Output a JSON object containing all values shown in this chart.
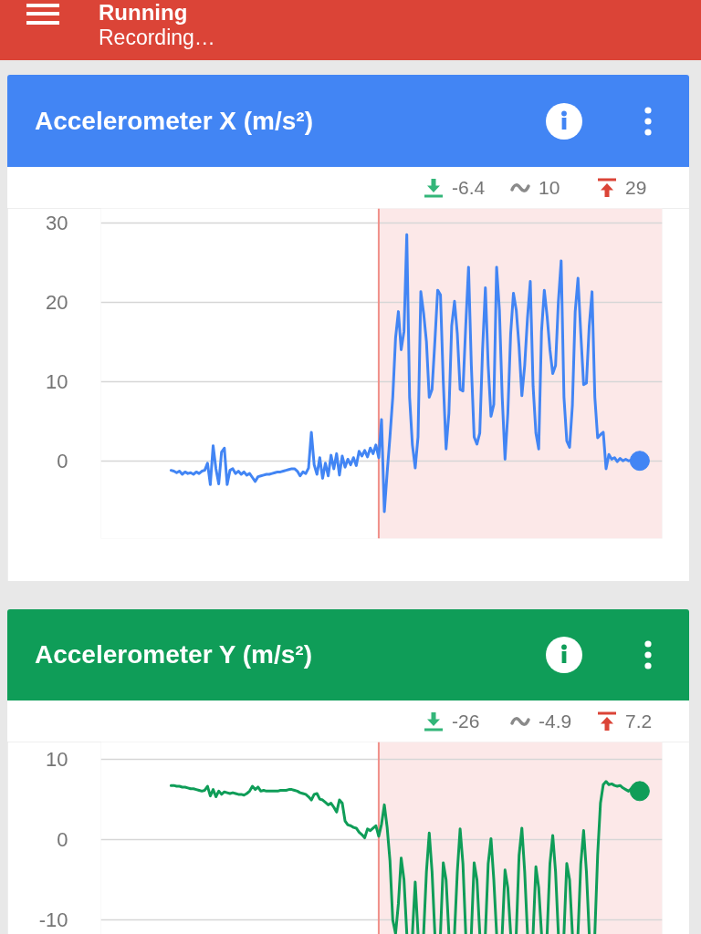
{
  "chart_data": [
    {
      "type": "other",
      "title": "Running",
      "subtitle": "Recording…"
    },
    {
      "type": "line",
      "title": "Accelerometer X (m/s²)",
      "annotations": [
        "-6.4",
        "10",
        "29"
      ],
      "categories": [
        null,
        null,
        null,
        null,
        null,
        null,
        null,
        null,
        null,
        null,
        null,
        null,
        null,
        null,
        null,
        null,
        null,
        null,
        null,
        null,
        null,
        null,
        null,
        null,
        null,
        null,
        null,
        null,
        null,
        null,
        null,
        null,
        null,
        null,
        null,
        null,
        null,
        null,
        null,
        null,
        null,
        null,
        null,
        null,
        null,
        null,
        null,
        null,
        null,
        null,
        null,
        null,
        null,
        null,
        null,
        null,
        null,
        null,
        null,
        null,
        null,
        null,
        null,
        null,
        null,
        null,
        null,
        null,
        null,
        null,
        null,
        null,
        null,
        null,
        null,
        null,
        null,
        null,
        null,
        null,
        null,
        null,
        null,
        null,
        null,
        null,
        null,
        null,
        null,
        null,
        null,
        null,
        null,
        null,
        null,
        null,
        null,
        null,
        null,
        null,
        null,
        null,
        null,
        null,
        null,
        null,
        null,
        null,
        null,
        null,
        null,
        null,
        null,
        null,
        null,
        null,
        null,
        null,
        null,
        null,
        null,
        null,
        null,
        null,
        null,
        null,
        null,
        null,
        null,
        null,
        null,
        null,
        null,
        null,
        null,
        null,
        null,
        null,
        null,
        null,
        null,
        null,
        null,
        null,
        null,
        null,
        null,
        null,
        null,
        null,
        null,
        null,
        null,
        null,
        null,
        null,
        null,
        null,
        null,
        null,
        null,
        null,
        null,
        null,
        null,
        null,
        null,
        null,
        null,
        null,
        null,
        null,
        null,
        null,
        null,
        null,
        null,
        null,
        null,
        null,
        null,
        null,
        null,
        null,
        null,
        null,
        null,
        null,
        null,
        null,
        null,
        null,
        null,
        null,
        null,
        null,
        null,
        null,
        null,
        null,
        null
      ],
      "series": [
        {
          "type": "line",
          "color": "#4285f4",
          "values": [
            null,
            null,
            null,
            null,
            null,
            null,
            null,
            null,
            null,
            null,
            null,
            null,
            null,
            null,
            null,
            null,
            null,
            null,
            null,
            null,
            null,
            null,
            null,
            null,
            null,
            -1.2,
            -1.3,
            -1.5,
            -1.3,
            -1.7,
            -1.4,
            -1.6,
            -1.5,
            -1.7,
            -1.4,
            -1.6,
            -1.3,
            -1.2,
            -0.3,
            -3.0,
            1.9,
            -1.0,
            -2.9,
            1.1,
            1.6,
            -3.0,
            -1.2,
            -1.0,
            -1.6,
            -1.3,
            -1.7,
            -1.4,
            -1.8,
            -1.6,
            -2.1,
            -2.6,
            -2.0,
            -1.9,
            -1.8,
            -1.7,
            -1.7,
            -1.6,
            -1.5,
            -1.4,
            -1.4,
            -1.3,
            -1.2,
            -1.1,
            -1.0,
            -1.0,
            -1.3,
            -1.9,
            -1.4,
            -1.6,
            -0.9,
            3.6,
            -0.5,
            -1.7,
            0.4,
            -2.2,
            -0.3,
            -1.9,
            0.7,
            -1.0,
            0.9,
            -1.8,
            0.6,
            -0.8,
            0.2,
            -0.5,
            0.4,
            -0.6,
            1.2,
            0.6,
            1.3,
            0.5,
            1.6,
            0.9,
            2.0,
            0.4,
            5.2,
            -6.4,
            -1.5,
            3.0,
            8.0,
            15.5,
            18.8,
            14.0,
            16.3,
            28.5,
            8.0,
            2.0,
            -0.9,
            3.0,
            21.3,
            18.6,
            15.0,
            8.0,
            9.0,
            15.0,
            21.5,
            20.9,
            10.0,
            1.5,
            6.0,
            17.0,
            20.1,
            16.0,
            9.0,
            8.8,
            17.0,
            24.4,
            12.0,
            3.0,
            2.1,
            3.5,
            14.0,
            21.8,
            12.0,
            5.6,
            7.1,
            24.4,
            19.0,
            8.0,
            0.2,
            6.0,
            16.0,
            21.1,
            19.0,
            14.4,
            8.2,
            12.0,
            18.0,
            22.6,
            9.4,
            3.5,
            1.5,
            16.3,
            21.5,
            18.2,
            14.0,
            11.0,
            12.0,
            20.0,
            25.2,
            8.0,
            2.5,
            1.7,
            7.0,
            18.8,
            23.0,
            16.0,
            9.6,
            9.8,
            17.0,
            21.3,
            8.0,
            2.9,
            3.3,
            3.6,
            -1.0,
            0.8,
            0.2,
            0.4,
            -0.1,
            0.3,
            0.0,
            0.2,
            0.0,
            0.1,
            0.0,
            0.1,
            0.0,
            null,
            null,
            null,
            null,
            null,
            null,
            null,
            null
          ]
        },
        {
          "type": "scatter",
          "marker": "circle",
          "color": "#4285f4",
          "values": [
            null,
            null,
            null,
            null,
            null,
            null,
            null,
            null,
            null,
            null,
            null,
            null,
            null,
            null,
            null,
            null,
            null,
            null,
            null,
            null,
            null,
            null,
            null,
            null,
            null,
            null,
            null,
            null,
            null,
            null,
            null,
            null,
            null,
            null,
            null,
            null,
            null,
            null,
            null,
            null,
            null,
            null,
            null,
            null,
            null,
            null,
            null,
            null,
            null,
            null,
            null,
            null,
            null,
            null,
            null,
            null,
            null,
            null,
            null,
            null,
            null,
            null,
            null,
            null,
            null,
            null,
            null,
            null,
            null,
            null,
            null,
            null,
            null,
            null,
            null,
            null,
            null,
            null,
            null,
            null,
            null,
            null,
            null,
            null,
            null,
            null,
            null,
            null,
            null,
            null,
            null,
            null,
            null,
            null,
            null,
            null,
            null,
            null,
            null,
            null,
            null,
            null,
            null,
            null,
            null,
            null,
            null,
            null,
            null,
            null,
            null,
            null,
            null,
            null,
            null,
            null,
            null,
            null,
            null,
            null,
            null,
            null,
            null,
            null,
            null,
            null,
            null,
            null,
            null,
            null,
            null,
            null,
            null,
            null,
            null,
            null,
            null,
            null,
            null,
            null,
            null,
            null,
            null,
            null,
            null,
            null,
            null,
            null,
            null,
            null,
            null,
            null,
            null,
            null,
            null,
            null,
            null,
            null,
            null,
            null,
            null,
            null,
            null,
            null,
            null,
            null,
            null,
            null,
            null,
            null,
            null,
            null,
            null,
            null,
            null,
            null,
            null,
            null,
            null,
            null,
            null,
            null,
            null,
            null,
            null,
            null,
            null,
            null,
            null,
            null,
            null,
            null,
            0.0,
            null,
            null,
            null,
            null,
            null,
            null,
            null,
            null
          ]
        }
      ],
      "ylim": [
        -9.8,
        31.8
      ],
      "yticks": [
        0,
        10,
        20,
        30
      ],
      "grid": "y",
      "tick_labels": "y",
      "line_style": "solid"
    },
    {
      "type": "line",
      "title": "Accelerometer Y (m/s²)",
      "annotations": [
        "-26",
        "-4.9",
        "7.2"
      ],
      "categories": [
        null,
        null,
        null,
        null,
        null,
        null,
        null,
        null,
        null,
        null,
        null,
        null,
        null,
        null,
        null,
        null,
        null,
        null,
        null,
        null,
        null,
        null,
        null,
        null,
        null,
        null,
        null,
        null,
        null,
        null,
        null,
        null,
        null,
        null,
        null,
        null,
        null,
        null,
        null,
        null,
        null,
        null,
        null,
        null,
        null,
        null,
        null,
        null,
        null,
        null,
        null,
        null,
        null,
        null,
        null,
        null,
        null,
        null,
        null,
        null,
        null,
        null,
        null,
        null,
        null,
        null,
        null,
        null,
        null,
        null,
        null,
        null,
        null,
        null,
        null,
        null,
        null,
        null,
        null,
        null,
        null,
        null,
        null,
        null,
        null,
        null,
        null,
        null,
        null,
        null,
        null,
        null,
        null,
        null,
        null,
        null,
        null,
        null,
        null,
        null,
        null,
        null,
        null,
        null,
        null,
        null,
        null,
        null,
        null,
        null,
        null,
        null,
        null,
        null,
        null,
        null,
        null,
        null,
        null,
        null,
        null,
        null,
        null,
        null,
        null,
        null,
        null,
        null,
        null,
        null,
        null,
        null,
        null,
        null,
        null,
        null,
        null,
        null,
        null,
        null,
        null,
        null,
        null,
        null,
        null,
        null,
        null,
        null,
        null,
        null,
        null,
        null,
        null,
        null,
        null,
        null,
        null,
        null,
        null,
        null,
        null,
        null,
        null,
        null,
        null,
        null,
        null,
        null,
        null,
        null,
        null,
        null,
        null,
        null,
        null,
        null,
        null,
        null,
        null,
        null,
        null,
        null,
        null,
        null,
        null,
        null,
        null,
        null,
        null,
        null,
        null,
        null,
        null,
        null,
        null,
        null,
        null,
        null,
        null,
        null,
        null
      ],
      "series": [
        {
          "type": "line",
          "color": "#0f9d58",
          "values": [
            null,
            null,
            null,
            null,
            null,
            null,
            null,
            null,
            null,
            null,
            null,
            null,
            null,
            null,
            null,
            null,
            null,
            null,
            null,
            null,
            null,
            null,
            null,
            null,
            null,
            6.7,
            6.7,
            6.6,
            6.6,
            6.5,
            6.5,
            6.4,
            6.3,
            6.3,
            6.2,
            6.1,
            6.0,
            6.1,
            6.6,
            5.4,
            6.2,
            5.3,
            6.0,
            5.6,
            5.9,
            5.8,
            5.7,
            5.8,
            5.7,
            5.6,
            5.6,
            5.5,
            5.7,
            6.0,
            6.6,
            6.2,
            6.5,
            6.0,
            6.1,
            6.0,
            6.0,
            6.0,
            6.0,
            6.0,
            6.1,
            6.1,
            6.1,
            6.2,
            6.2,
            6.1,
            6.0,
            5.8,
            5.7,
            5.6,
            5.3,
            4.9,
            5.6,
            5.7,
            5.0,
            4.9,
            4.6,
            4.3,
            4.5,
            4.0,
            3.4,
            4.9,
            4.5,
            2.3,
            1.8,
            1.7,
            1.5,
            1.4,
            0.9,
            0.6,
            0.2,
            1.3,
            1.1,
            1.4,
            1.7,
            0.4,
            1.9,
            4.3,
            1.5,
            -2.6,
            -10.0,
            -11.7,
            -8.0,
            -2.3,
            -5.0,
            -11.7,
            null,
            -11.7,
            -5.3,
            -11.7,
            null,
            -11.7,
            -4.0,
            0.8,
            -4.0,
            -11.7,
            null,
            -11.7,
            -2.9,
            -5.0,
            -11.7,
            null,
            -11.7,
            -4.0,
            1.3,
            -3.0,
            -11.7,
            null,
            -11.7,
            -2.9,
            -5.0,
            -11.7,
            null,
            -11.7,
            -3.0,
            0.1,
            -5.0,
            -11.7,
            null,
            -11.7,
            -3.8,
            -6.0,
            -11.7,
            null,
            -11.7,
            -2.0,
            1.4,
            -4.0,
            -11.7,
            null,
            -11.7,
            -3.4,
            -6.0,
            -11.7,
            null,
            -11.7,
            -3.0,
            0.5,
            -4.0,
            -11.7,
            null,
            -11.7,
            -3.0,
            -5.0,
            -11.7,
            null,
            -11.7,
            -3.0,
            1.1,
            -4.0,
            -11.7,
            null,
            -11.7,
            -1.9,
            4.5,
            6.8,
            7.2,
            6.8,
            6.9,
            6.7,
            6.6,
            6.7,
            6.4,
            6.2,
            6.0,
            6.3,
            6.1,
            6.0,
            6.0,
            null,
            null,
            null,
            null,
            null,
            null,
            null,
            null
          ]
        },
        {
          "type": "scatter",
          "marker": "circle",
          "color": "#0f9d58",
          "values": [
            null,
            null,
            null,
            null,
            null,
            null,
            null,
            null,
            null,
            null,
            null,
            null,
            null,
            null,
            null,
            null,
            null,
            null,
            null,
            null,
            null,
            null,
            null,
            null,
            null,
            null,
            null,
            null,
            null,
            null,
            null,
            null,
            null,
            null,
            null,
            null,
            null,
            null,
            null,
            null,
            null,
            null,
            null,
            null,
            null,
            null,
            null,
            null,
            null,
            null,
            null,
            null,
            null,
            null,
            null,
            null,
            null,
            null,
            null,
            null,
            null,
            null,
            null,
            null,
            null,
            null,
            null,
            null,
            null,
            null,
            null,
            null,
            null,
            null,
            null,
            null,
            null,
            null,
            null,
            null,
            null,
            null,
            null,
            null,
            null,
            null,
            null,
            null,
            null,
            null,
            null,
            null,
            null,
            null,
            null,
            null,
            null,
            null,
            null,
            null,
            null,
            null,
            null,
            null,
            null,
            null,
            null,
            null,
            null,
            null,
            null,
            null,
            null,
            null,
            null,
            null,
            null,
            null,
            null,
            null,
            null,
            null,
            null,
            null,
            null,
            null,
            null,
            null,
            null,
            null,
            null,
            null,
            null,
            null,
            null,
            null,
            null,
            null,
            null,
            null,
            null,
            null,
            null,
            null,
            null,
            null,
            null,
            null,
            null,
            null,
            null,
            null,
            null,
            null,
            null,
            null,
            null,
            null,
            null,
            null,
            null,
            null,
            null,
            null,
            null,
            null,
            null,
            null,
            null,
            null,
            null,
            null,
            null,
            null,
            null,
            null,
            null,
            null,
            null,
            null,
            null,
            null,
            null,
            null,
            null,
            null,
            null,
            null,
            null,
            null,
            null,
            null,
            6.0,
            null,
            null,
            null,
            null,
            null,
            null,
            null,
            null
          ]
        }
      ],
      "ylim": [
        -11.8,
        12.1
      ],
      "yticks": [
        {
          "value": -10,
          "label": "-10"
        },
        0,
        10
      ],
      "grid": "y",
      "tick_labels": "y",
      "line_style": "solid"
    }
  ]
}
